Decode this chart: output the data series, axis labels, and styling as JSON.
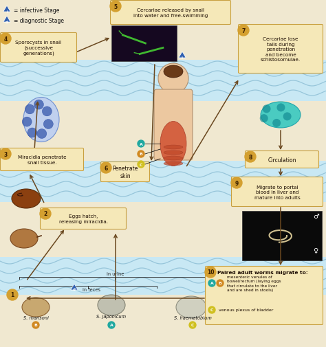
{
  "bg_color": "#f0e8d0",
  "wave_color": "#8bbdd4",
  "wave_bg": "#c8e8f4",
  "circle_color": "#d4a030",
  "circle_text_color": "#3a2000",
  "box_color": "#f5e8b8",
  "box_edge": "#c8a040",
  "arrow_color": "#6a4820",
  "badge_colors": {
    "A": "#20a8a0",
    "B": "#d08820",
    "C": "#d0c020"
  },
  "legend_infective": "= infective Stage",
  "legend_diagnostic": "= diagnostic Stage",
  "labels": {
    "2": "Eggs hatch,\nreleasing miracidia.",
    "3": "Miracidia penetrate\nsnail tissue.",
    "4": "Sporocysts in snail\n(successive\ngenerations)",
    "5": "Cercariae released by snail\ninto water and free-swimming",
    "6": "Penetrate\nskin",
    "7": "Cercariae lose\ntails during\npenetration\nand become\nschistosomulae.",
    "8": "Circulation",
    "9": "Migrate to portal\nblood in liver and\nmature into adults",
    "10": "Paired adult worms migrate to:"
  },
  "species": [
    "S. mansoni",
    "S. japonicum",
    "S. haematobium"
  ],
  "urine_label": "in urine",
  "feces_label": "in feces",
  "route_10_AB": "mesenteric venules of\nbowel/rectum (laying eggs\nthat circulate to the liver\nand are shed in stools)",
  "route_10_C": "venous plexus of bladder",
  "male_label": "♂",
  "female_label": "♀"
}
